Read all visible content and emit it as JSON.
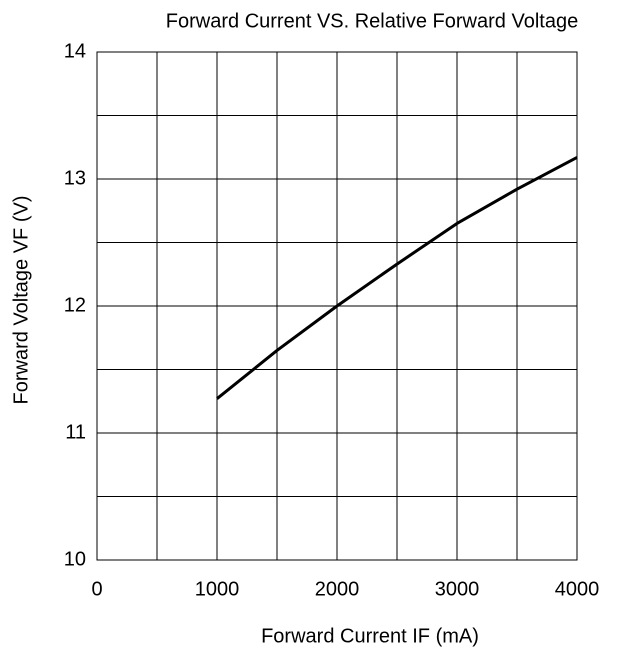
{
  "chart_data": {
    "type": "line",
    "title": "Forward Current VS.  Relative Forward Voltage",
    "x_label": "Forward Current IF  (mA)",
    "y_label": "Forward  Voltage  VF  (V)",
    "x": [
      1000,
      1500,
      2000,
      2500,
      3000,
      3500,
      4000
    ],
    "series": [
      {
        "color": "#000000",
        "values": [
          11.27,
          11.65,
          12.0,
          12.33,
          12.65,
          12.92,
          13.17
        ]
      }
    ],
    "xlim": [
      0,
      4000
    ],
    "xticks": [
      0,
      1000,
      2000,
      3000,
      4000
    ],
    "x_minor_ticks": [
      500,
      1500,
      2500,
      3500
    ],
    "ylim": [
      10,
      14
    ],
    "yticks": [
      10,
      11,
      12,
      13,
      14
    ],
    "y_minor_ticks": [
      10.5,
      11.5,
      12.5,
      13.5
    ],
    "grid": true
  }
}
